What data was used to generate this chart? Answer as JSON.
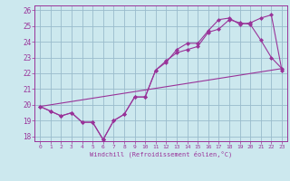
{
  "title": "",
  "xlabel": "Windchill (Refroidissement éolien,°C)",
  "ylabel": "",
  "bg_color": "#cce8ee",
  "line_color": "#993399",
  "grid_color": "#99bbcc",
  "xlim": [
    -0.5,
    23.5
  ],
  "ylim": [
    17.7,
    26.3
  ],
  "yticks": [
    18,
    19,
    20,
    21,
    22,
    23,
    24,
    25,
    26
  ],
  "xticks": [
    0,
    1,
    2,
    3,
    4,
    5,
    6,
    7,
    8,
    9,
    10,
    11,
    12,
    13,
    14,
    15,
    16,
    17,
    18,
    19,
    20,
    21,
    22,
    23
  ],
  "series1_x": [
    0,
    1,
    2,
    3,
    4,
    5,
    6,
    7,
    8,
    9,
    10,
    11,
    12,
    13,
    14,
    15,
    16,
    17,
    18,
    19,
    20,
    21,
    22,
    23
  ],
  "series1_y": [
    19.9,
    19.6,
    19.3,
    19.5,
    18.9,
    18.9,
    17.8,
    19.0,
    19.4,
    20.5,
    20.5,
    22.2,
    22.8,
    23.3,
    23.5,
    23.7,
    24.6,
    24.8,
    25.4,
    25.2,
    25.1,
    24.1,
    23.0,
    22.3
  ],
  "series2_x": [
    0,
    1,
    2,
    3,
    4,
    5,
    6,
    7,
    8,
    9,
    10,
    11,
    12,
    13,
    14,
    15,
    16,
    17,
    18,
    19,
    20,
    21,
    22,
    23
  ],
  "series2_y": [
    19.9,
    19.6,
    19.3,
    19.5,
    18.9,
    18.9,
    17.8,
    19.0,
    19.4,
    20.5,
    20.5,
    22.2,
    22.7,
    23.5,
    23.9,
    23.9,
    24.7,
    25.4,
    25.5,
    25.1,
    25.2,
    25.5,
    25.7,
    22.2
  ],
  "series3_x": [
    0,
    23
  ],
  "series3_y": [
    19.9,
    22.3
  ]
}
